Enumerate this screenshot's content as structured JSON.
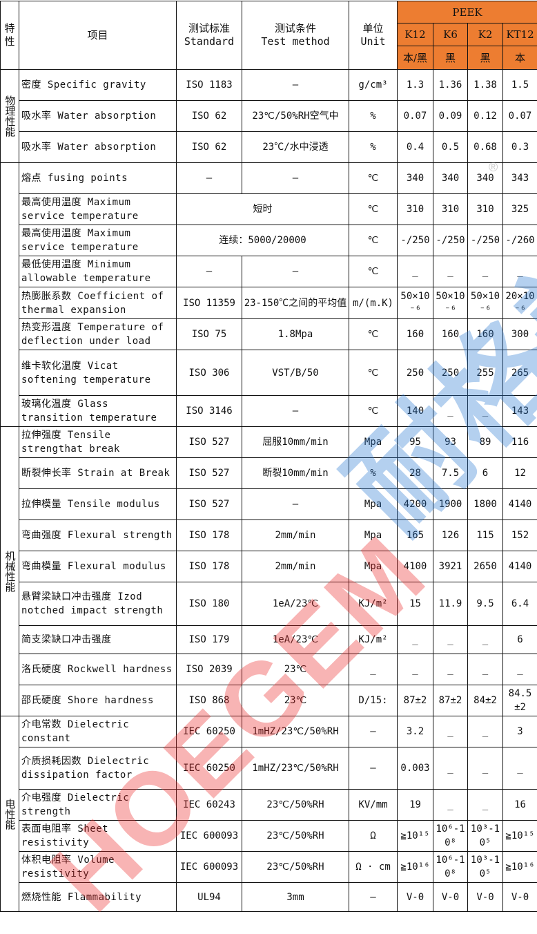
{
  "header": {
    "group_col": "特性",
    "item": "项目",
    "standard": "测试标准\nStandard",
    "condition": "测试条件\nTest method",
    "unit": "单位\nUnit",
    "material": "PEEK",
    "grades": [
      "K12",
      "K6",
      "K2",
      "KT12"
    ],
    "colors": [
      "本/黑",
      "黑",
      "黑",
      "本"
    ]
  },
  "groups": [
    {
      "label": "物理性能",
      "rows": 3
    },
    {
      "label": "",
      "rows": 8
    },
    {
      "label": "机械性能",
      "rows": 9
    },
    {
      "label": "电性能",
      "rows": 6
    }
  ],
  "rows": [
    {
      "item": "密度  Specific gravity",
      "standard": "ISO 1183",
      "condition": "–",
      "unit": "g/cm³",
      "values": [
        "1.3",
        "1.36",
        "1.38",
        "1.5"
      ]
    },
    {
      "item": "吸水率  Water absorption",
      "standard": "ISO 62",
      "condition": "23℃/50%RH空气中",
      "unit": "%",
      "values": [
        "0.07",
        "0.09",
        "0.12",
        "0.07"
      ]
    },
    {
      "item": "吸水率  Water absorption",
      "standard": "ISO 62",
      "condition": "23℃/水中浸透",
      "unit": "%",
      "values": [
        "0.4",
        "0.5",
        "0.68",
        "0.3"
      ]
    },
    {
      "item": "熔点 fusing points",
      "standard": "–",
      "condition": "–",
      "unit": "℃",
      "values": [
        "340",
        "340",
        "340",
        "343"
      ]
    },
    {
      "item": "最高使用温度 Maximum service temperature",
      "merged": "短时",
      "unit": "℃",
      "values": [
        "310",
        "310",
        "310",
        "325"
      ]
    },
    {
      "item": "最高使用温度 Maximum service temperature",
      "merged": "连续：5000/20000",
      "unit": "℃",
      "values": [
        "-/250",
        "-/250",
        "-/250",
        "-/260"
      ]
    },
    {
      "item": "最低使用温度 Minimum allowable temperature",
      "standard": "–",
      "condition": "–",
      "unit": "℃",
      "values": [
        "_",
        "_",
        "_",
        "_"
      ]
    },
    {
      "item": "热膨胀系数 Coefficient of thermal expansion",
      "standard": "ISO 11359",
      "condition": "23-150℃之间的平均值",
      "unit": "m/(m.K)",
      "values": [
        "50×10⁻⁶",
        "50×10⁻⁶",
        "50×10⁻⁶",
        "20×10⁻⁶"
      ]
    },
    {
      "item": "热变形温度 Temperature of deflection under load",
      "standard": "ISO 75",
      "condition": "1.8Mpa",
      "unit": "℃",
      "values": [
        "160",
        "160",
        "160",
        "300"
      ]
    },
    {
      "item": "维卡软化温度 Vicat softening temperature",
      "standard": "ISO 306",
      "condition": "VST/B/50",
      "unit": "℃",
      "values": [
        "250",
        "250",
        "255",
        "265"
      ]
    },
    {
      "item": "玻璃化温度 Glass transition temperature",
      "standard": "ISO 3146",
      "condition": "–",
      "unit": "℃",
      "values": [
        "140",
        "_",
        "_",
        "143"
      ]
    },
    {
      "item": "拉伸强度  Tensile strengthat break",
      "standard": "ISO 527",
      "condition": "屈服10mm/min",
      "unit": "Mpa",
      "values": [
        "95",
        "93",
        "89",
        "116"
      ]
    },
    {
      "item": "断裂伸长率  Strain at Break",
      "standard": "ISO 527",
      "condition": "断裂10mm/min",
      "unit": "%",
      "values": [
        "28",
        "7.5",
        "6",
        "12"
      ]
    },
    {
      "item": "拉伸模量  Tensile modulus",
      "standard": "ISO 527",
      "condition": "–",
      "unit": "Mpa",
      "values": [
        "4200",
        "1900",
        "1800",
        "4140"
      ]
    },
    {
      "item": "弯曲强度  Flexural strength",
      "standard": "ISO 178",
      "condition": "2mm/min",
      "unit": "Mpa",
      "values": [
        "165",
        "126",
        "115",
        "152"
      ]
    },
    {
      "item": "弯曲模量  Flexural modulus",
      "standard": "ISO 178",
      "condition": "2mm/min",
      "unit": "Mpa",
      "values": [
        "4100",
        "3921",
        "2650",
        "4140"
      ]
    },
    {
      "item": "悬臂梁缺口冲击强度 Izod notched impact strength",
      "standard": "ISO 180",
      "condition": "1eA/23℃",
      "unit": "KJ/m²",
      "values": [
        "15",
        "11.9",
        "9.5",
        "6.4"
      ]
    },
    {
      "item": "简支梁缺口冲击强度",
      "standard": "ISO 179",
      "condition": "1eA/23℃",
      "unit": "KJ/m²",
      "values": [
        "_",
        "_",
        "_",
        "6"
      ]
    },
    {
      "item": "洛氏硬度  Rockwell hardness",
      "standard": "ISO 2039",
      "condition": "23℃",
      "unit": "_",
      "values": [
        "_",
        "_",
        "_",
        "_"
      ]
    },
    {
      "item": "邵氏硬度  Shore hardness",
      "standard": "ISO 868",
      "condition": "23℃",
      "unit": "D/15:",
      "values": [
        "87±2",
        "87±2",
        "84±2",
        "84.5±2"
      ]
    },
    {
      "item": "介电常数  Dielectric constant",
      "standard": "IEC 60250",
      "condition": "1mHZ/23℃/50%RH",
      "unit": "–",
      "values": [
        "3.2",
        "_",
        "_",
        "3"
      ]
    },
    {
      "item": "介质损耗因数 Dielectric dissipation factor",
      "standard": "IEC 60250",
      "condition": "1mHZ/23℃/50%RH",
      "unit": "–",
      "values": [
        "0.003",
        "_",
        "_",
        "_"
      ]
    },
    {
      "item": "介电强度  Dielectric strength",
      "standard": "IEC 60243",
      "condition": "23℃/50%RH",
      "unit": "KV/mm",
      "values": [
        "19",
        "_",
        "_",
        "16"
      ]
    },
    {
      "item": "表面电阻率 Sheet resistivity",
      "standard": "IEC 600093",
      "condition": "23℃/50%RH",
      "unit": "Ω",
      "values": [
        "≧10¹⁵",
        "10⁶-10⁸",
        "10³-10⁵",
        "≧10¹⁵"
      ]
    },
    {
      "item": "体积电阻率 Volume resistivity",
      "standard": "IEC 600093",
      "condition": "23℃/50%RH",
      "unit": "Ω · cm",
      "values": [
        "≧10¹⁶",
        "10⁶-10⁸",
        "10³-10⁵",
        "≧10¹⁶"
      ]
    },
    {
      "item": "燃烧性能 Flammability",
      "standard": "UL94",
      "condition": "3mm",
      "unit": "–",
      "values": [
        "V-0",
        "V-0",
        "V-0",
        "V-0"
      ]
    }
  ],
  "watermark": {
    "latin": "HOEGEM",
    "chinese": "耐格美",
    "red": "#eb2828",
    "blue": "#2878d2"
  },
  "colors": {
    "header_accent": "#ed7d31"
  }
}
